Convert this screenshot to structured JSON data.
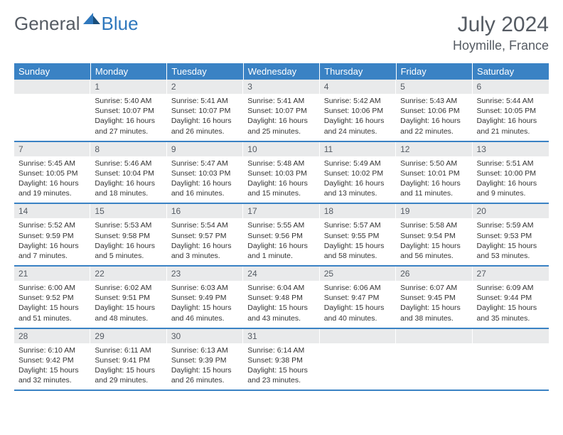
{
  "logo": {
    "word1": "General",
    "word2": "Blue"
  },
  "title": "July 2024",
  "location": "Hoymille, France",
  "colors": {
    "header_bg": "#3a82c4",
    "header_text": "#ffffff",
    "daynum_bg": "#e9eaeb",
    "text": "#333333",
    "muted": "#555b63",
    "row_border": "#3a82c4",
    "accent_blue": "#2f78bd"
  },
  "typography": {
    "title_fontsize": 30,
    "location_fontsize": 18,
    "dow_fontsize": 13,
    "daynum_fontsize": 12,
    "body_fontsize": 10.5
  },
  "day_headers": [
    "Sunday",
    "Monday",
    "Tuesday",
    "Wednesday",
    "Thursday",
    "Friday",
    "Saturday"
  ],
  "weeks": [
    [
      {
        "n": "",
        "lines": []
      },
      {
        "n": "1",
        "lines": [
          "Sunrise: 5:40 AM",
          "Sunset: 10:07 PM",
          "Daylight: 16 hours and 27 minutes."
        ]
      },
      {
        "n": "2",
        "lines": [
          "Sunrise: 5:41 AM",
          "Sunset: 10:07 PM",
          "Daylight: 16 hours and 26 minutes."
        ]
      },
      {
        "n": "3",
        "lines": [
          "Sunrise: 5:41 AM",
          "Sunset: 10:07 PM",
          "Daylight: 16 hours and 25 minutes."
        ]
      },
      {
        "n": "4",
        "lines": [
          "Sunrise: 5:42 AM",
          "Sunset: 10:06 PM",
          "Daylight: 16 hours and 24 minutes."
        ]
      },
      {
        "n": "5",
        "lines": [
          "Sunrise: 5:43 AM",
          "Sunset: 10:06 PM",
          "Daylight: 16 hours and 22 minutes."
        ]
      },
      {
        "n": "6",
        "lines": [
          "Sunrise: 5:44 AM",
          "Sunset: 10:05 PM",
          "Daylight: 16 hours and 21 minutes."
        ]
      }
    ],
    [
      {
        "n": "7",
        "lines": [
          "Sunrise: 5:45 AM",
          "Sunset: 10:05 PM",
          "Daylight: 16 hours and 19 minutes."
        ]
      },
      {
        "n": "8",
        "lines": [
          "Sunrise: 5:46 AM",
          "Sunset: 10:04 PM",
          "Daylight: 16 hours and 18 minutes."
        ]
      },
      {
        "n": "9",
        "lines": [
          "Sunrise: 5:47 AM",
          "Sunset: 10:03 PM",
          "Daylight: 16 hours and 16 minutes."
        ]
      },
      {
        "n": "10",
        "lines": [
          "Sunrise: 5:48 AM",
          "Sunset: 10:03 PM",
          "Daylight: 16 hours and 15 minutes."
        ]
      },
      {
        "n": "11",
        "lines": [
          "Sunrise: 5:49 AM",
          "Sunset: 10:02 PM",
          "Daylight: 16 hours and 13 minutes."
        ]
      },
      {
        "n": "12",
        "lines": [
          "Sunrise: 5:50 AM",
          "Sunset: 10:01 PM",
          "Daylight: 16 hours and 11 minutes."
        ]
      },
      {
        "n": "13",
        "lines": [
          "Sunrise: 5:51 AM",
          "Sunset: 10:00 PM",
          "Daylight: 16 hours and 9 minutes."
        ]
      }
    ],
    [
      {
        "n": "14",
        "lines": [
          "Sunrise: 5:52 AM",
          "Sunset: 9:59 PM",
          "Daylight: 16 hours and 7 minutes."
        ]
      },
      {
        "n": "15",
        "lines": [
          "Sunrise: 5:53 AM",
          "Sunset: 9:58 PM",
          "Daylight: 16 hours and 5 minutes."
        ]
      },
      {
        "n": "16",
        "lines": [
          "Sunrise: 5:54 AM",
          "Sunset: 9:57 PM",
          "Daylight: 16 hours and 3 minutes."
        ]
      },
      {
        "n": "17",
        "lines": [
          "Sunrise: 5:55 AM",
          "Sunset: 9:56 PM",
          "Daylight: 16 hours and 1 minute."
        ]
      },
      {
        "n": "18",
        "lines": [
          "Sunrise: 5:57 AM",
          "Sunset: 9:55 PM",
          "Daylight: 15 hours and 58 minutes."
        ]
      },
      {
        "n": "19",
        "lines": [
          "Sunrise: 5:58 AM",
          "Sunset: 9:54 PM",
          "Daylight: 15 hours and 56 minutes."
        ]
      },
      {
        "n": "20",
        "lines": [
          "Sunrise: 5:59 AM",
          "Sunset: 9:53 PM",
          "Daylight: 15 hours and 53 minutes."
        ]
      }
    ],
    [
      {
        "n": "21",
        "lines": [
          "Sunrise: 6:00 AM",
          "Sunset: 9:52 PM",
          "Daylight: 15 hours and 51 minutes."
        ]
      },
      {
        "n": "22",
        "lines": [
          "Sunrise: 6:02 AM",
          "Sunset: 9:51 PM",
          "Daylight: 15 hours and 48 minutes."
        ]
      },
      {
        "n": "23",
        "lines": [
          "Sunrise: 6:03 AM",
          "Sunset: 9:49 PM",
          "Daylight: 15 hours and 46 minutes."
        ]
      },
      {
        "n": "24",
        "lines": [
          "Sunrise: 6:04 AM",
          "Sunset: 9:48 PM",
          "Daylight: 15 hours and 43 minutes."
        ]
      },
      {
        "n": "25",
        "lines": [
          "Sunrise: 6:06 AM",
          "Sunset: 9:47 PM",
          "Daylight: 15 hours and 40 minutes."
        ]
      },
      {
        "n": "26",
        "lines": [
          "Sunrise: 6:07 AM",
          "Sunset: 9:45 PM",
          "Daylight: 15 hours and 38 minutes."
        ]
      },
      {
        "n": "27",
        "lines": [
          "Sunrise: 6:09 AM",
          "Sunset: 9:44 PM",
          "Daylight: 15 hours and 35 minutes."
        ]
      }
    ],
    [
      {
        "n": "28",
        "lines": [
          "Sunrise: 6:10 AM",
          "Sunset: 9:42 PM",
          "Daylight: 15 hours and 32 minutes."
        ]
      },
      {
        "n": "29",
        "lines": [
          "Sunrise: 6:11 AM",
          "Sunset: 9:41 PM",
          "Daylight: 15 hours and 29 minutes."
        ]
      },
      {
        "n": "30",
        "lines": [
          "Sunrise: 6:13 AM",
          "Sunset: 9:39 PM",
          "Daylight: 15 hours and 26 minutes."
        ]
      },
      {
        "n": "31",
        "lines": [
          "Sunrise: 6:14 AM",
          "Sunset: 9:38 PM",
          "Daylight: 15 hours and 23 minutes."
        ]
      },
      {
        "n": "",
        "lines": []
      },
      {
        "n": "",
        "lines": []
      },
      {
        "n": "",
        "lines": []
      }
    ]
  ]
}
